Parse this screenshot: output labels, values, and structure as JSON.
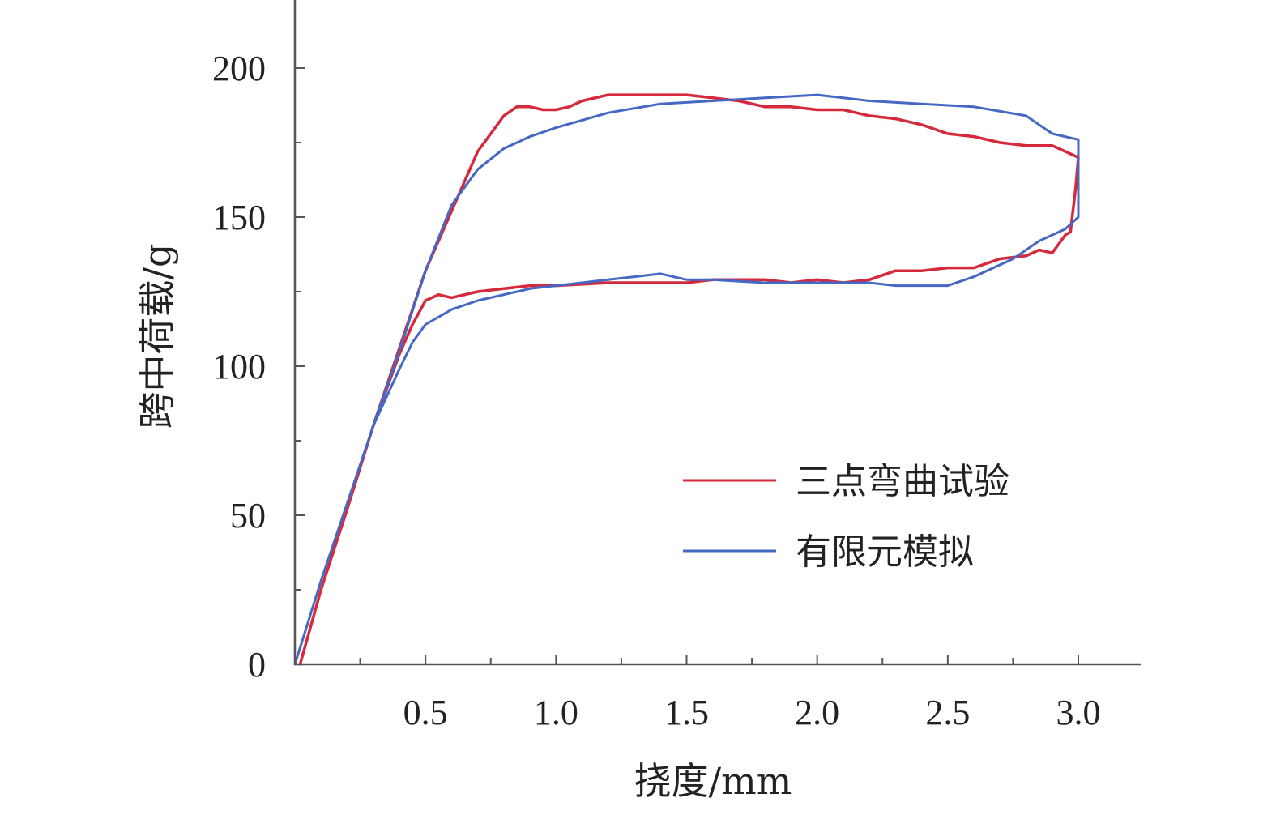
{
  "chart_data": {
    "type": "line",
    "xlabel": "挠度/mm",
    "ylabel": "跨中荷载/g",
    "xlim": [
      0,
      3.2
    ],
    "ylim": [
      0,
      200
    ],
    "x_ticks": [
      0.5,
      1.0,
      1.5,
      2.0,
      2.5,
      3.0
    ],
    "x_tick_labels": [
      "0.5",
      "1.0",
      "1.5",
      "2.0",
      "2.5",
      "3.0"
    ],
    "y_ticks": [
      0,
      50,
      100,
      150,
      200
    ],
    "y_tick_labels": [
      "0",
      "50",
      "100",
      "150",
      "200"
    ],
    "grid": false,
    "legend_position": "lower-right",
    "series": [
      {
        "name": "三点弯曲试验",
        "color": "#d42a3c",
        "x": [
          0.02,
          0.1,
          0.2,
          0.3,
          0.4,
          0.5,
          0.6,
          0.7,
          0.75,
          0.8,
          0.85,
          0.9,
          0.95,
          1.0,
          1.05,
          1.1,
          1.2,
          1.3,
          1.4,
          1.5,
          1.6,
          1.7,
          1.8,
          1.9,
          2.0,
          2.1,
          2.2,
          2.3,
          2.4,
          2.5,
          2.6,
          2.7,
          2.8,
          2.9,
          2.95,
          3.0,
          2.99,
          2.97,
          2.95,
          2.9,
          2.85,
          2.8,
          2.7,
          2.6,
          2.5,
          2.4,
          2.3,
          2.2,
          2.1,
          2.0,
          1.9,
          1.8,
          1.7,
          1.6,
          1.5,
          1.4,
          1.2,
          1.0,
          0.9,
          0.8,
          0.7,
          0.6,
          0.55,
          0.5,
          0.45,
          0.4,
          0.3,
          0.2,
          0.1,
          0.02
        ],
        "y": [
          0,
          25,
          52,
          80,
          106,
          132,
          152,
          172,
          178,
          184,
          187,
          187,
          186,
          186,
          187,
          189,
          191,
          191,
          191,
          191,
          190,
          189,
          187,
          187,
          186,
          186,
          184,
          183,
          181,
          178,
          177,
          175,
          174,
          174,
          172,
          170,
          160,
          145,
          144,
          138,
          139,
          137,
          136,
          133,
          133,
          132,
          132,
          129,
          128,
          129,
          128,
          129,
          129,
          129,
          128,
          128,
          128,
          127,
          127,
          126,
          125,
          123,
          124,
          122,
          114,
          104,
          80,
          52,
          25,
          0
        ]
      },
      {
        "name": "有限元模拟",
        "color": "#4468c4",
        "x": [
          0.0,
          0.1,
          0.2,
          0.3,
          0.4,
          0.5,
          0.6,
          0.7,
          0.8,
          0.9,
          1.0,
          1.2,
          1.4,
          1.6,
          1.8,
          2.0,
          2.1,
          2.2,
          2.4,
          2.6,
          2.8,
          2.9,
          3.0,
          3.0,
          2.95,
          2.85,
          2.75,
          2.6,
          2.5,
          2.4,
          2.3,
          2.2,
          2.0,
          1.8,
          1.6,
          1.5,
          1.4,
          1.3,
          1.2,
          1.0,
          0.9,
          0.8,
          0.7,
          0.6,
          0.5,
          0.45,
          0.4,
          0.3,
          0.2,
          0.1,
          0.0
        ],
        "y": [
          0,
          28,
          54,
          80,
          105,
          132,
          154,
          166,
          173,
          177,
          180,
          185,
          188,
          189,
          190,
          191,
          190,
          189,
          188,
          187,
          184,
          178,
          176,
          150,
          146,
          142,
          136,
          130,
          127,
          127,
          127,
          128,
          128,
          128,
          129,
          129,
          131,
          130,
          129,
          127,
          126,
          124,
          122,
          119,
          114,
          108,
          99,
          80,
          54,
          28,
          0
        ]
      }
    ]
  }
}
